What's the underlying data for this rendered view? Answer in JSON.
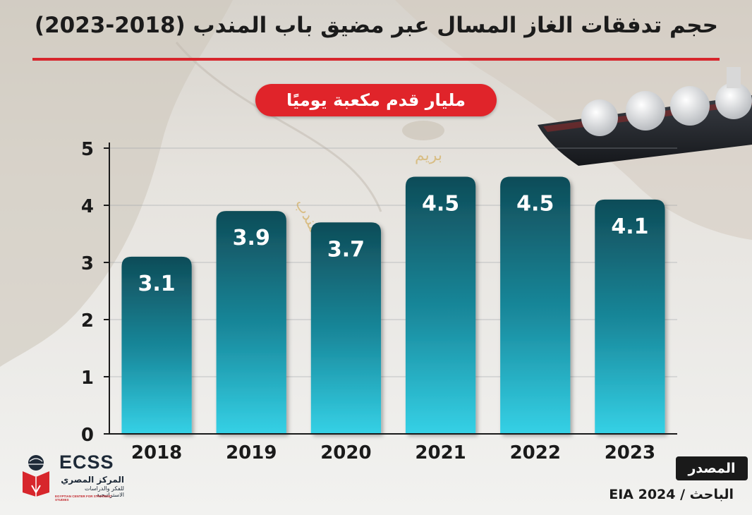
{
  "title": "حجم تدفقات الغاز المسال عبر مضيق باب المندب (2018-2023)",
  "unit_label": "مليار قدم مكعبة يوميًا",
  "map_labels": {
    "strait": "مضيق باب المندب",
    "island": "بريم"
  },
  "source": {
    "heading": "المصدر",
    "text": "الباحث / EIA 2024"
  },
  "logo": {
    "acronym": "ECSS",
    "arabic_name": "المركز المصري",
    "arabic_sub": "للفكر والدراسات الاستراتيجية",
    "english_name": "EGYPTIAN CENTER FOR STRATEGIC STUDIES"
  },
  "colors": {
    "accent_red": "#e0242a",
    "bar_top": "#0f4c58",
    "bar_bottom": "#35d1e6"
  },
  "chart_data": {
    "type": "bar",
    "title": "حجم تدفقات الغاز المسال عبر مضيق باب المندب (2018-2023)",
    "ylabel": "مليار قدم مكعبة يوميًا",
    "xlabel": "",
    "categories": [
      "2018",
      "2019",
      "2020",
      "2021",
      "2022",
      "2023"
    ],
    "values": [
      3.1,
      3.9,
      3.7,
      4.5,
      4.5,
      4.1
    ],
    "ylim": [
      0,
      5
    ],
    "yticks": [
      "0",
      "1",
      "2",
      "3",
      "4",
      "5"
    ],
    "grid": true,
    "data_labels": true
  }
}
